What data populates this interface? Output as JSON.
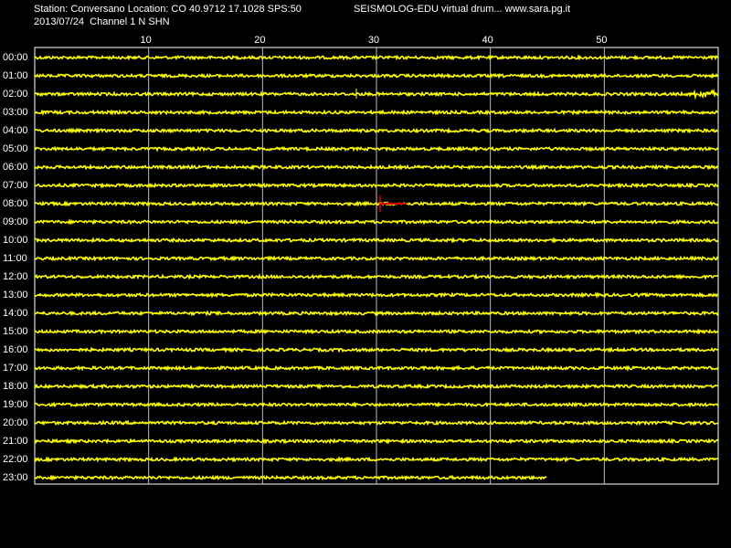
{
  "header": {
    "station": "Station: Conversano Location: CO 40.9712 17.1028 SPS:50",
    "title": "SEISMOLOG-EDU virtual drum... www.sara.pg.it",
    "date_channel": "2013/07/24  Channel 1 N SHN"
  },
  "minute_axis": {
    "ticks": [
      10,
      20,
      30,
      40,
      50
    ]
  },
  "hours": [
    "00:00",
    "01:00",
    "02:00",
    "03:00",
    "04:00",
    "05:00",
    "06:00",
    "07:00",
    "08:00",
    "09:00",
    "10:00",
    "11:00",
    "12:00",
    "13:00",
    "14:00",
    "15:00",
    "16:00",
    "17:00",
    "18:00",
    "19:00",
    "20:00",
    "21:00",
    "22:00",
    "23:00"
  ]
}
